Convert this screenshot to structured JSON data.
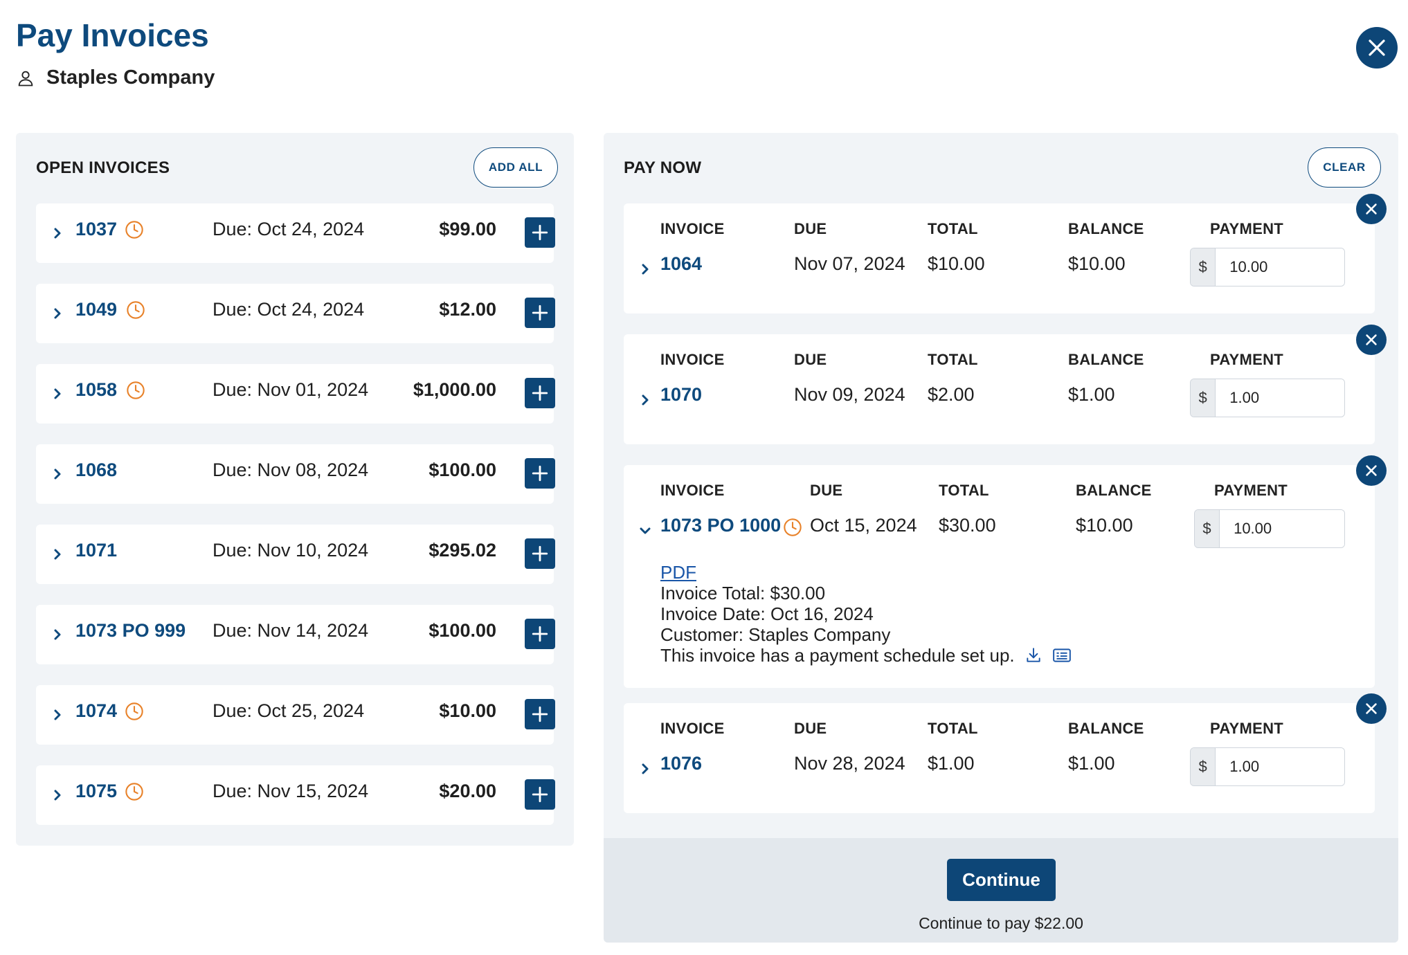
{
  "header": {
    "title": "Pay Invoices",
    "customer": "Staples Company",
    "close_icon": "close-icon"
  },
  "open_invoices": {
    "heading": "OPEN INVOICES",
    "add_all_label": "ADD ALL",
    "rows": [
      {
        "number": "1037",
        "clock": true,
        "due": "Due: Oct 24, 2024",
        "amount": "$99.00"
      },
      {
        "number": "1049",
        "clock": true,
        "due": "Due: Oct 24, 2024",
        "amount": "$12.00"
      },
      {
        "number": "1058",
        "clock": true,
        "due": "Due: Nov 01, 2024",
        "amount": "$1,000.00"
      },
      {
        "number": "1068",
        "clock": false,
        "due": "Due: Nov 08, 2024",
        "amount": "$100.00"
      },
      {
        "number": "1071",
        "clock": false,
        "due": "Due: Nov 10, 2024",
        "amount": "$295.02"
      },
      {
        "number": "1073 PO 999",
        "clock": false,
        "due": "Due: Nov 14, 2024",
        "amount": "$100.00"
      },
      {
        "number": "1074",
        "clock": true,
        "due": "Due: Oct 25, 2024",
        "amount": "$10.00"
      },
      {
        "number": "1075",
        "clock": true,
        "due": "Due: Nov 15, 2024",
        "amount": "$20.00"
      }
    ]
  },
  "pay_now": {
    "heading": "PAY NOW",
    "clear_label": "CLEAR",
    "columns": [
      "INVOICE",
      "DUE",
      "TOTAL",
      "BALANCE",
      "PAYMENT"
    ],
    "currency_symbol": "$",
    "items": [
      {
        "number": "1064",
        "clock": false,
        "due": "Nov 07, 2024",
        "total": "$10.00",
        "balance": "$10.00",
        "payment": "10.00",
        "expanded": false
      },
      {
        "number": "1070",
        "clock": false,
        "due": "Nov 09, 2024",
        "total": "$2.00",
        "balance": "$1.00",
        "payment": "1.00",
        "expanded": false
      },
      {
        "number": "1073 PO 1000",
        "clock": true,
        "due": "Oct 15, 2024",
        "total": "$30.00",
        "balance": "$10.00",
        "payment": "10.00",
        "expanded": true,
        "details": {
          "pdf_label": "PDF",
          "invoice_total": "Invoice Total: $30.00",
          "invoice_date": "Invoice Date: Oct 16, 2024",
          "customer": "Customer: Staples Company",
          "schedule_note": "This invoice has a payment schedule set up."
        }
      },
      {
        "number": "1076",
        "clock": false,
        "due": "Nov 28, 2024",
        "total": "$1.00",
        "balance": "$1.00",
        "payment": "1.00",
        "expanded": false
      }
    ]
  },
  "footer": {
    "continue_label": "Continue",
    "continue_note": "Continue to pay $22.00"
  },
  "colors": {
    "brand": "#0e4a7d",
    "accent_clock": "#e8822a",
    "panel_bg": "#f1f4f7"
  }
}
